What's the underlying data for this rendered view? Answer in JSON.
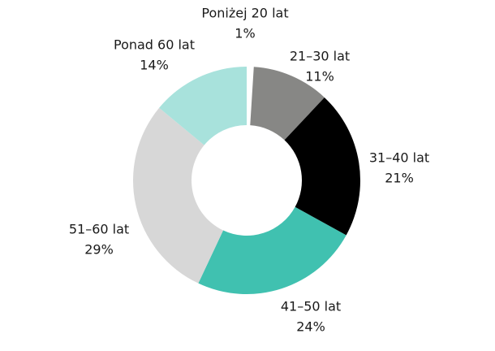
{
  "chart_data": {
    "type": "donut",
    "categories": [
      "Poniżej 20 lat",
      "21–30 lat",
      "31–40 lat",
      "41–50 lat",
      "51–60 lat",
      "Ponad 60 lat"
    ],
    "values": [
      1,
      11,
      21,
      24,
      29,
      14
    ],
    "value_labels": [
      "1%",
      "11%",
      "21%",
      "24%",
      "29%",
      "14%"
    ],
    "colors": [
      "#ffffff",
      "#878785",
      "#000000",
      "#40c1b0",
      "#d7d7d7",
      "#a8e2dc"
    ]
  }
}
